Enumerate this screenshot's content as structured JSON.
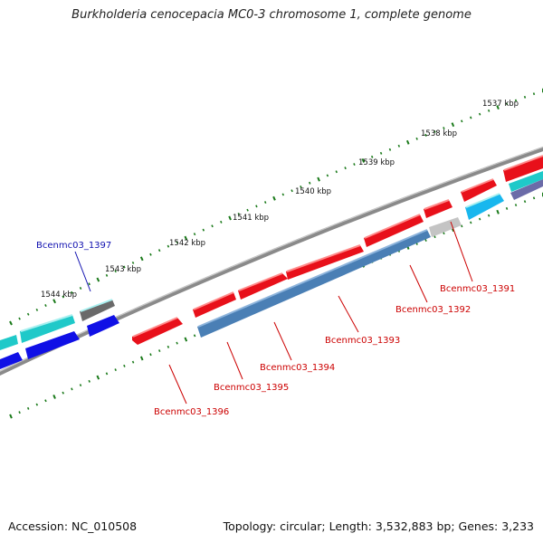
{
  "title": "Burkholderia cenocepacia MC0-3 chromosome 1, complete genome",
  "footer": {
    "accession": "Accession: NC_010508",
    "summary": "Topology: circular; Length: 3,532,883 bp; Genes: 3,233"
  },
  "ruler_labels": [
    "1537 kbp",
    "1538 kbp",
    "1539 kbp",
    "1540 kbp",
    "1541 kbp",
    "1542 kbp",
    "1543 kbp",
    "1544 kbp"
  ],
  "genes": [
    {
      "label": "Bcenmc03_1391",
      "color": "#d11111"
    },
    {
      "label": "Bcenmc03_1392",
      "color": "#d11111"
    },
    {
      "label": "Bcenmc03_1393",
      "color": "#d11111"
    },
    {
      "label": "Bcenmc03_1394",
      "color": "#d11111"
    },
    {
      "label": "Bcenmc03_1395",
      "color": "#d11111"
    },
    {
      "label": "Bcenmc03_1396",
      "color": "#d11111"
    },
    {
      "label": "Bcenmc03_1397",
      "color": "#1010b0"
    }
  ],
  "colors": {
    "backbone": "#8a8a8a",
    "tick": "#1a7a1a",
    "red_cds": "#e8101a",
    "blue_cds": "#4a7fb5",
    "light_blue": "#18b7ee",
    "cyan": "#1fc9c9",
    "dark_blue": "#1010e6",
    "gray": "#6a6a6a",
    "light_gray": "#c4c4c4"
  }
}
